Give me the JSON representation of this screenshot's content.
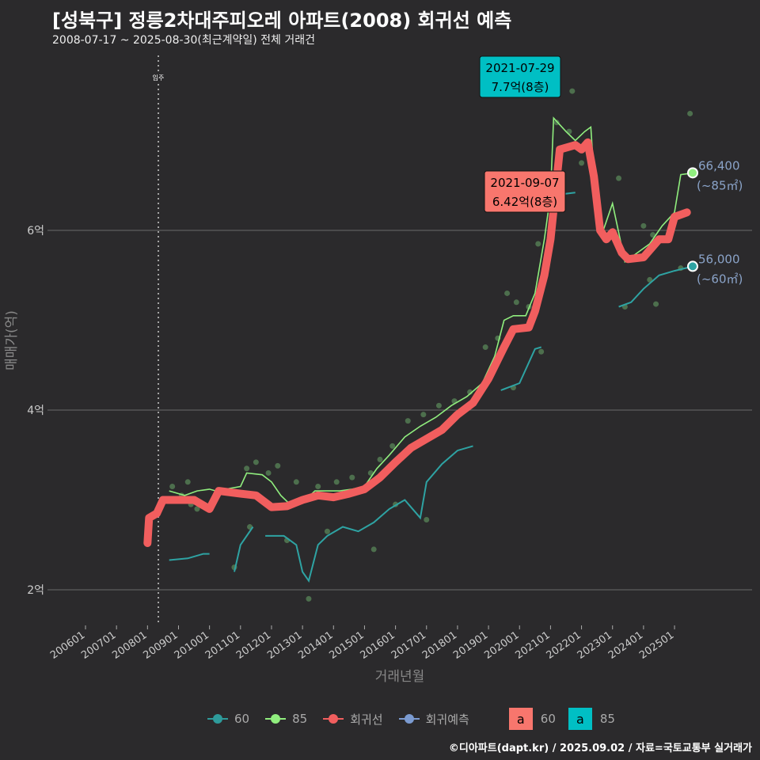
{
  "title": "[성북구] 정릉2차대주피오레 아파트(2008) 회귀선 예측",
  "subtitle": "2008-07-17 ~ 2025-08-30(최근계약일) 전체 거래건",
  "footer": "©디아파트(dapt.kr) / 2025.09.02 / 자료=국토교통부 실거래가",
  "chart_data": {
    "type": "line",
    "xlabel": "거래년월",
    "ylabel": "매매가(억)",
    "x_ticks": [
      "200601",
      "200701",
      "200801",
      "200901",
      "201001",
      "201101",
      "201201",
      "201301",
      "201401",
      "201501",
      "201601",
      "201701",
      "201801",
      "201901",
      "202001",
      "202101",
      "202201",
      "202301",
      "202401",
      "202501"
    ],
    "y_ticks": [
      {
        "v": 2,
        "label": "2억"
      },
      {
        "v": 4,
        "label": "4억"
      },
      {
        "v": 6,
        "label": "6억"
      }
    ],
    "xlim": [
      2005.55,
      2027.5
    ],
    "ylim": [
      1.55,
      8.1
    ],
    "move_in": {
      "x": 2008.35,
      "label": "입주"
    },
    "series": [
      {
        "name": "회귀선",
        "color": "#f15e5e",
        "points": [
          [
            2008.0,
            2.52
          ],
          [
            2008.05,
            2.8
          ],
          [
            2008.3,
            2.85
          ],
          [
            2008.5,
            3.0
          ],
          [
            2009.5,
            3.0
          ],
          [
            2010.0,
            2.9
          ],
          [
            2010.3,
            3.1
          ],
          [
            2011.0,
            3.07
          ],
          [
            2011.5,
            3.05
          ],
          [
            2012.0,
            2.92
          ],
          [
            2012.5,
            2.93
          ],
          [
            2013.0,
            3.0
          ],
          [
            2013.5,
            3.05
          ],
          [
            2014.0,
            3.03
          ],
          [
            2014.5,
            3.07
          ],
          [
            2015.0,
            3.12
          ],
          [
            2015.5,
            3.25
          ],
          [
            2016.0,
            3.42
          ],
          [
            2016.5,
            3.58
          ],
          [
            2017.0,
            3.68
          ],
          [
            2017.5,
            3.78
          ],
          [
            2018.0,
            3.95
          ],
          [
            2018.5,
            4.08
          ],
          [
            2019.0,
            4.35
          ],
          [
            2019.5,
            4.7
          ],
          [
            2019.8,
            4.9
          ],
          [
            2020.3,
            4.92
          ],
          [
            2020.5,
            5.1
          ],
          [
            2020.8,
            5.5
          ],
          [
            2021.0,
            5.9
          ],
          [
            2021.3,
            6.9
          ],
          [
            2021.8,
            6.95
          ],
          [
            2022.0,
            6.9
          ],
          [
            2022.2,
            6.98
          ],
          [
            2022.4,
            6.6
          ],
          [
            2022.6,
            6.0
          ],
          [
            2022.8,
            5.9
          ],
          [
            2023.0,
            5.98
          ],
          [
            2023.3,
            5.75
          ],
          [
            2023.5,
            5.68
          ],
          [
            2024.0,
            5.7
          ],
          [
            2024.5,
            5.9
          ],
          [
            2024.8,
            5.9
          ],
          [
            2025.0,
            6.15
          ],
          [
            2025.4,
            6.2
          ]
        ]
      },
      {
        "name": "85",
        "color": "#90ee7e",
        "points": [
          [
            2008.7,
            3.1
          ],
          [
            2009.2,
            3.05
          ],
          [
            2009.6,
            3.1
          ],
          [
            2010.0,
            3.12
          ],
          [
            2010.2,
            3.1
          ],
          [
            2011.0,
            3.15
          ],
          [
            2011.2,
            3.3
          ],
          [
            2011.7,
            3.28
          ],
          [
            2012.0,
            3.2
          ],
          [
            2012.3,
            3.05
          ],
          [
            2012.6,
            2.95
          ],
          [
            2013.0,
            2.97
          ],
          [
            2013.4,
            3.1
          ],
          [
            2013.8,
            3.1
          ],
          [
            2014.2,
            3.1
          ],
          [
            2014.6,
            3.12
          ],
          [
            2015.0,
            3.15
          ],
          [
            2015.4,
            3.35
          ],
          [
            2015.8,
            3.5
          ],
          [
            2016.3,
            3.7
          ],
          [
            2016.8,
            3.82
          ],
          [
            2017.3,
            3.92
          ],
          [
            2017.8,
            4.05
          ],
          [
            2018.3,
            4.15
          ],
          [
            2018.8,
            4.3
          ],
          [
            2019.2,
            4.6
          ],
          [
            2019.5,
            5.0
          ],
          [
            2019.8,
            5.05
          ],
          [
            2020.2,
            5.05
          ],
          [
            2020.5,
            5.3
          ],
          [
            2020.8,
            5.9
          ],
          [
            2021.0,
            6.4
          ],
          [
            2021.1,
            7.25
          ],
          [
            2021.5,
            7.1
          ],
          [
            2021.8,
            7.0
          ],
          [
            2022.1,
            7.1
          ],
          [
            2022.3,
            7.15
          ],
          [
            2022.5,
            6.1
          ],
          [
            2022.7,
            6.0
          ],
          [
            2023.0,
            6.3
          ],
          [
            2023.4,
            5.65
          ],
          [
            2023.8,
            5.75
          ],
          [
            2024.2,
            5.85
          ],
          [
            2024.6,
            6.05
          ],
          [
            2025.0,
            6.2
          ],
          [
            2025.2,
            6.62
          ],
          [
            2025.6,
            6.64
          ]
        ]
      },
      {
        "name": "60",
        "color": "#2ea3a3",
        "points": [
          [
            2008.7,
            2.33
          ],
          [
            2009.3,
            2.35
          ],
          [
            2009.8,
            2.4
          ],
          [
            2010.0,
            2.4
          ],
          [
            null,
            null
          ],
          [
            2010.8,
            2.2
          ],
          [
            2011.0,
            2.5
          ],
          [
            2011.4,
            2.7
          ],
          [
            null,
            null
          ],
          [
            2011.8,
            2.6
          ],
          [
            2012.4,
            2.6
          ],
          [
            2012.8,
            2.5
          ],
          [
            2013.0,
            2.2
          ],
          [
            2013.2,
            2.1
          ],
          [
            2013.5,
            2.5
          ],
          [
            2013.8,
            2.6
          ],
          [
            2014.3,
            2.7
          ],
          [
            2014.8,
            2.65
          ],
          [
            2015.3,
            2.75
          ],
          [
            2015.8,
            2.9
          ],
          [
            2016.3,
            3.0
          ],
          [
            2016.8,
            2.8
          ],
          [
            2017.0,
            3.2
          ],
          [
            2017.5,
            3.4
          ],
          [
            2018.0,
            3.55
          ],
          [
            2018.5,
            3.6
          ],
          [
            null,
            null
          ],
          [
            2019.4,
            4.22
          ],
          [
            2020.0,
            4.3
          ],
          [
            2020.5,
            4.68
          ],
          [
            2020.7,
            4.7
          ],
          [
            null,
            null
          ],
          [
            2021.3,
            6.4
          ],
          [
            2021.8,
            6.42
          ],
          [
            null,
            null
          ],
          [
            2023.2,
            5.15
          ],
          [
            2023.6,
            5.2
          ],
          [
            2024.0,
            5.35
          ],
          [
            2024.5,
            5.5
          ],
          [
            2025.0,
            5.55
          ],
          [
            2025.6,
            5.6
          ]
        ]
      }
    ],
    "scatter": [
      [
        2008.8,
        3.15
      ],
      [
        2009.1,
        3.05
      ],
      [
        2009.3,
        3.2
      ],
      [
        2009.4,
        2.95
      ],
      [
        2009.6,
        2.9
      ],
      [
        2011.2,
        3.35
      ],
      [
        2011.5,
        3.42
      ],
      [
        2011.9,
        3.3
      ],
      [
        2012.2,
        3.38
      ],
      [
        2012.8,
        3.2
      ],
      [
        2013.5,
        3.15
      ],
      [
        2014.1,
        3.2
      ],
      [
        2014.6,
        3.25
      ],
      [
        2015.2,
        3.3
      ],
      [
        2015.5,
        3.45
      ],
      [
        2015.9,
        3.6
      ],
      [
        2016.4,
        3.88
      ],
      [
        2016.9,
        3.95
      ],
      [
        2017.4,
        4.05
      ],
      [
        2017.9,
        4.1
      ],
      [
        2018.4,
        4.2
      ],
      [
        2018.9,
        4.7
      ],
      [
        2019.3,
        4.8
      ],
      [
        2019.6,
        5.3
      ],
      [
        2019.9,
        5.2
      ],
      [
        2020.3,
        5.15
      ],
      [
        2020.6,
        5.85
      ],
      [
        2020.9,
        6.45
      ],
      [
        2021.2,
        7.2
      ],
      [
        2021.6,
        7.1
      ],
      [
        2021.7,
        7.55
      ],
      [
        2022.0,
        6.75
      ],
      [
        2022.6,
        6.05
      ],
      [
        2023.2,
        6.58
      ],
      [
        2024.0,
        6.05
      ],
      [
        2024.3,
        5.95
      ],
      [
        2025.5,
        7.3
      ],
      [
        2010.8,
        2.25
      ],
      [
        2011.3,
        2.7
      ],
      [
        2012.5,
        2.55
      ],
      [
        2013.2,
        1.9
      ],
      [
        2013.8,
        2.65
      ],
      [
        2015.3,
        2.45
      ],
      [
        2016.0,
        2.95
      ],
      [
        2017.0,
        2.78
      ],
      [
        2019.8,
        4.25
      ],
      [
        2020.7,
        4.65
      ],
      [
        2023.4,
        5.15
      ],
      [
        2024.2,
        5.45
      ],
      [
        2024.4,
        5.18
      ],
      [
        2025.2,
        5.58
      ]
    ],
    "annotations": [
      {
        "date": "2021-07-29",
        "value": "7.7억(8층)",
        "color": "#00bfc4"
      },
      {
        "date": "2021-09-07",
        "value": "6.42억(8층)",
        "color": "#f8766d"
      }
    ],
    "end_labels": [
      {
        "price": "66,400",
        "area": "(~85㎡)",
        "color": "#90ee7e"
      },
      {
        "price": "56,000",
        "area": "(~60㎡)",
        "color": "#2ea3a3"
      }
    ],
    "legend": {
      "lines": [
        {
          "name": "60",
          "color": "#2e9b9b"
        },
        {
          "name": "85",
          "color": "#90ee7e"
        },
        {
          "name": "회귀선",
          "color": "#f15e5e"
        },
        {
          "name": "회귀예측",
          "color": "#7b9bd1"
        }
      ],
      "boxes": [
        {
          "glyph": "a",
          "name": "60",
          "color": "#f8766d"
        },
        {
          "glyph": "a",
          "name": "85",
          "color": "#00bfc4"
        }
      ]
    }
  }
}
